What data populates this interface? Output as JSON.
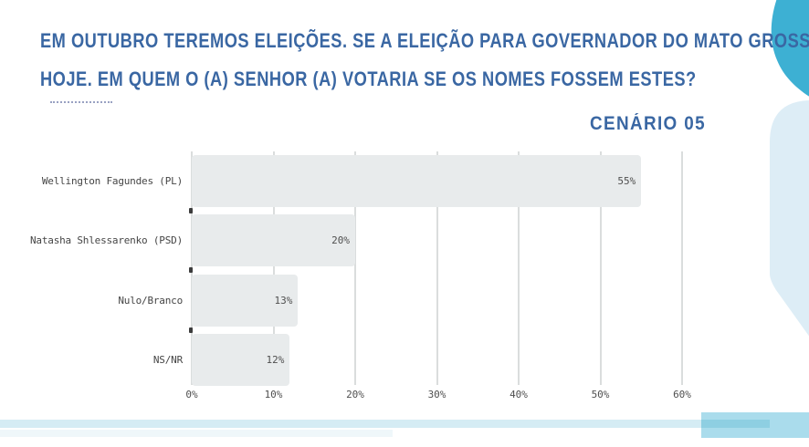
{
  "title": {
    "line1": "EM OUTUBRO TEREMOS ELEIÇÕES. SE A ELEIÇÃO PARA GOVERNADOR DO MATO GROSSO FOSSE",
    "line2": "HOJE. EM QUEM O (A) SENHOR (A) VOTARIA SE OS NOMES FOSSEM ESTES?",
    "color": "#3a67a3"
  },
  "scenario_label": "CENÁRIO 05",
  "chart_data": {
    "type": "bar",
    "orientation": "horizontal",
    "title": "CENÁRIO 05",
    "categories": [
      "Wellington Fagundes (PL)",
      "Natasha Shlessarenko (PSD)",
      "Nulo/Branco",
      "NS/NR"
    ],
    "values": [
      55,
      20,
      13,
      12
    ],
    "value_labels": [
      "55%",
      "20%",
      "13%",
      "12%"
    ],
    "x_ticks": [
      "0%",
      "10%",
      "20%",
      "30%",
      "40%",
      "50%",
      "60%"
    ],
    "xlim": [
      0,
      60
    ],
    "grid": true,
    "legend": false,
    "bar_color": "#e8ebec",
    "grid_color": "#dadddd"
  },
  "decor": {
    "teal_blob_color": "#3db0d3",
    "pale_shape_color": "#ddedf6",
    "bottom_rect_color": "#aadcec",
    "bottom_stripe_color": "#d5ecf4",
    "bottom_stripe_overlap_color": "#8ecfe2"
  }
}
